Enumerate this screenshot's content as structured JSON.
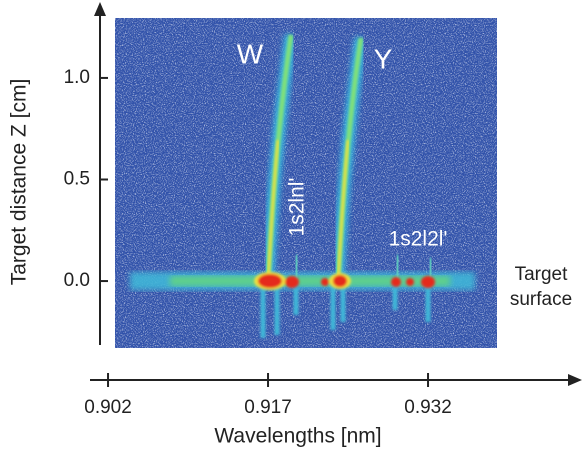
{
  "chart_data": {
    "type": "image",
    "x_label": "Wavelengths [nm]",
    "y_label": "Target distance Z [cm]",
    "xlim": [
      0.9,
      0.945
    ],
    "xticks": [
      0.902,
      0.917,
      0.932
    ],
    "ylim": [
      -0.3,
      1.3
    ],
    "yticks": [
      {
        "value": 0,
        "label": "0.0"
      },
      0.5,
      {
        "value": 1,
        "label": "1.0"
      }
    ],
    "annotations": [
      "W",
      "Y",
      "1s2lnl'",
      "1s2l2l'"
    ],
    "side_label": [
      "Target",
      "surface"
    ]
  }
}
